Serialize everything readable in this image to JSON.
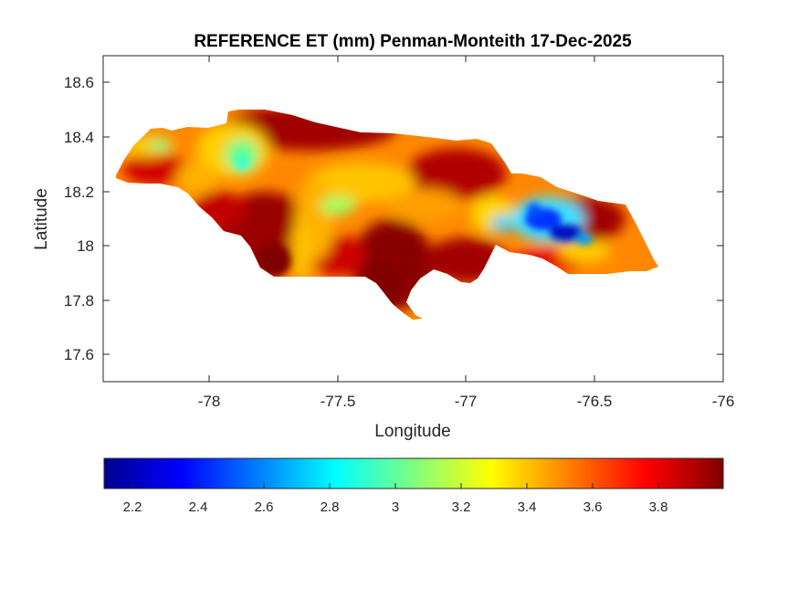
{
  "title": "REFERENCE ET (mm) Penman-Monteith 17-Dec-2025",
  "xlabel": "Longitude",
  "ylabel": "Latitude",
  "x_ticks": [
    "-78",
    "-77.5",
    "-77",
    "-76.5",
    "-76"
  ],
  "y_ticks": [
    "18.6",
    "18.4",
    "18.2",
    "18",
    "17.8",
    "17.6"
  ],
  "colorbar_ticks": [
    "2.2",
    "2.4",
    "2.6",
    "2.8",
    "3",
    "3.2",
    "3.4",
    "3.6",
    "3.8"
  ],
  "chart_data": {
    "type": "heatmap",
    "title": "REFERENCE ET (mm) Penman-Monteith 17-Dec-2025",
    "xlabel": "Longitude",
    "ylabel": "Latitude",
    "xlim": [
      -78.4,
      -76
    ],
    "ylim": [
      17.5,
      18.7
    ],
    "colormap": "jet",
    "colorbar_range": [
      2.12,
      4.0
    ],
    "colorbar_location": "bottom",
    "grid": false,
    "legend": "none"
  }
}
